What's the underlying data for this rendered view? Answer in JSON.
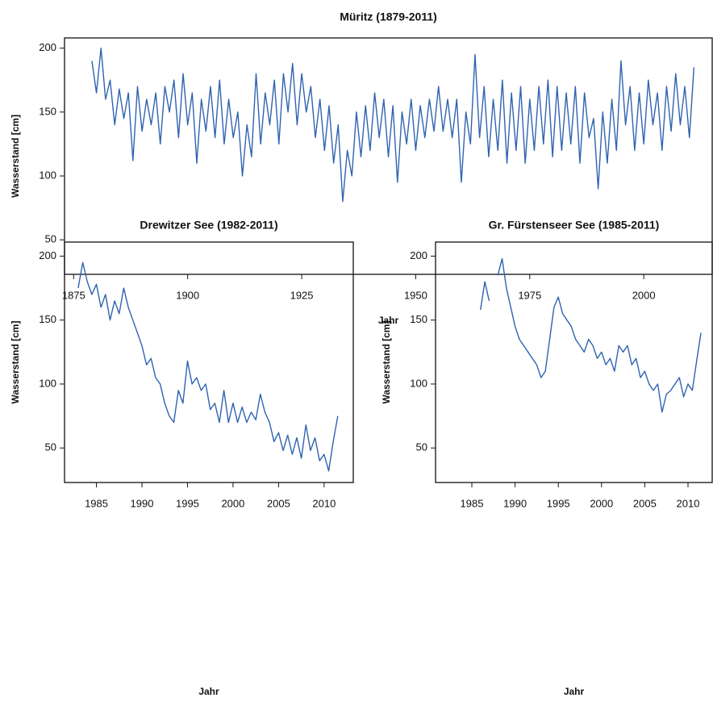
{
  "chart_data": [
    {
      "type": "line",
      "title": "Müritz (1879-2011)",
      "x_label": "Jahr",
      "y_label": "Wasserstand [cm]",
      "x": [
        1879,
        1880,
        1881,
        1882,
        1883,
        1884,
        1885,
        1886,
        1887,
        1888,
        1889,
        1890,
        1891,
        1892,
        1893,
        1894,
        1895,
        1896,
        1897,
        1898,
        1899,
        1900,
        1901,
        1902,
        1903,
        1904,
        1905,
        1906,
        1907,
        1908,
        1909,
        1910,
        1911,
        1912,
        1913,
        1914,
        1915,
        1916,
        1917,
        1918,
        1919,
        1920,
        1921,
        1922,
        1923,
        1924,
        1925,
        1926,
        1927,
        1928,
        1929,
        1930,
        1931,
        1932,
        1933,
        1934,
        1935,
        1936,
        1937,
        1938,
        1939,
        1940,
        1941,
        1942,
        1943,
        1944,
        1945,
        1946,
        1947,
        1948,
        1949,
        1950,
        1951,
        1952,
        1953,
        1954,
        1955,
        1956,
        1957,
        1958,
        1959,
        1960,
        1961,
        1962,
        1963,
        1964,
        1965,
        1966,
        1967,
        1968,
        1969,
        1970,
        1971,
        1972,
        1973,
        1974,
        1975,
        1976,
        1977,
        1978,
        1979,
        1980,
        1981,
        1982,
        1983,
        1984,
        1985,
        1986,
        1987,
        1988,
        1989,
        1990,
        1991,
        1992,
        1993,
        1994,
        1995,
        1996,
        1997,
        1998,
        1999,
        2000,
        2001,
        2002,
        2003,
        2004,
        2005,
        2006,
        2007,
        2008,
        2009,
        2010,
        2011
      ],
      "series": [
        {
          "name": "Müritz",
          "color": "#2f63b0",
          "values": [
            190,
            165,
            200,
            160,
            175,
            140,
            168,
            145,
            165,
            112,
            170,
            135,
            160,
            140,
            165,
            125,
            170,
            150,
            175,
            130,
            180,
            140,
            165,
            110,
            160,
            135,
            170,
            130,
            175,
            125,
            160,
            130,
            150,
            100,
            140,
            115,
            180,
            125,
            165,
            140,
            175,
            125,
            180,
            150,
            188,
            140,
            180,
            150,
            170,
            130,
            160,
            120,
            155,
            110,
            140,
            80,
            120,
            100,
            150,
            115,
            155,
            120,
            165,
            130,
            160,
            115,
            155,
            95,
            150,
            125,
            160,
            120,
            155,
            130,
            160,
            135,
            170,
            135,
            160,
            130,
            160,
            95,
            150,
            125,
            195,
            130,
            170,
            115,
            160,
            120,
            175,
            110,
            165,
            120,
            170,
            110,
            160,
            120,
            170,
            125,
            175,
            115,
            170,
            120,
            165,
            125,
            170,
            110,
            165,
            130,
            145,
            90,
            150,
            110,
            160,
            120,
            190,
            140,
            170,
            120,
            165,
            125,
            175,
            140,
            165,
            120,
            170,
            135,
            180,
            140,
            170,
            130,
            185
          ]
        }
      ],
      "xlim": [
        1873,
        2015
      ],
      "ylim": [
        23,
        208
      ],
      "xticks": [
        1875,
        1900,
        1925,
        1950,
        1975,
        2000
      ],
      "yticks": [
        50,
        100,
        150,
        200
      ]
    },
    {
      "type": "line",
      "title": "Drewitzer See (1982-2011)",
      "x_label": "Jahr",
      "y_label": "Wasserstand [cm]",
      "x": [
        1983,
        1983.5,
        1984,
        1984.5,
        1985,
        1985.5,
        1986,
        1986.5,
        1987,
        1987.5,
        1988,
        1988.5,
        1989,
        1989.5,
        1990,
        1990.5,
        1991,
        1991.5,
        1992,
        1992.5,
        1993,
        1993.5,
        1994,
        1994.5,
        1995,
        1995.5,
        1996,
        1996.5,
        1997,
        1997.5,
        1998,
        1998.5,
        1999,
        1999.5,
        2000,
        2000.5,
        2001,
        2001.5,
        2002,
        2002.5,
        2003,
        2003.5,
        2004,
        2004.5,
        2005,
        2005.5,
        2006,
        2006.5,
        2007,
        2007.5,
        2008,
        2008.5,
        2009,
        2009.5,
        2010,
        2010.5,
        2011,
        2011.5
      ],
      "series": [
        {
          "name": "Drewitzer See",
          "color": "#2f63b0",
          "values": [
            175,
            195,
            180,
            170,
            178,
            160,
            170,
            150,
            165,
            155,
            175,
            160,
            150,
            140,
            130,
            115,
            120,
            105,
            100,
            85,
            75,
            70,
            95,
            85,
            118,
            100,
            105,
            95,
            100,
            80,
            85,
            70,
            95,
            70,
            85,
            70,
            82,
            70,
            78,
            72,
            92,
            78,
            70,
            55,
            62,
            48,
            60,
            45,
            58,
            42,
            68,
            48,
            58,
            40,
            45,
            32,
            55,
            75
          ]
        }
      ],
      "xlim": [
        1981.5,
        2013.2
      ],
      "ylim": [
        23,
        211
      ],
      "xticks": [
        1985,
        1990,
        1995,
        2000,
        2005,
        2010
      ],
      "yticks": [
        50,
        100,
        150,
        200
      ]
    },
    {
      "type": "line",
      "title": "Gr. Fürstenseer See (1985-2011)",
      "x_label": "Jahr",
      "y_label": "Wasserstand [cm]",
      "x": [
        1986,
        1986.5,
        1987,
        1987.5,
        1988,
        1988.5,
        1989,
        1989.5,
        1990,
        1990.5,
        1991,
        1991.5,
        1992,
        1992.5,
        1993,
        1993.5,
        1994,
        1994.5,
        1995,
        1995.5,
        1996,
        1996.5,
        1997,
        1997.5,
        1998,
        1998.5,
        1999,
        1999.5,
        2000,
        2000.5,
        2001,
        2001.5,
        2002,
        2002.5,
        2003,
        2003.5,
        2004,
        2004.5,
        2005,
        2005.5,
        2006,
        2006.5,
        2007,
        2007.5,
        2008,
        2008.5,
        2009,
        2009.5,
        2010,
        2010.5,
        2011,
        2011.5
      ],
      "series": [
        {
          "name": "Gr. Fürstenseer See",
          "color": "#2f63b0",
          "values": [
            158,
            180,
            165,
            null,
            185,
            198,
            175,
            160,
            145,
            135,
            130,
            125,
            120,
            115,
            105,
            110,
            135,
            160,
            168,
            155,
            150,
            145,
            135,
            130,
            125,
            135,
            130,
            120,
            125,
            115,
            120,
            110,
            130,
            125,
            130,
            115,
            120,
            105,
            110,
            100,
            95,
            100,
            78,
            92,
            95,
            100,
            105,
            90,
            100,
            95,
            118,
            140
          ]
        }
      ],
      "xlim": [
        1980.8,
        2012.8
      ],
      "ylim": [
        23,
        211
      ],
      "xticks": [
        1985,
        1990,
        1995,
        2000,
        2005,
        2010
      ],
      "yticks": [
        50,
        100,
        150,
        200
      ]
    }
  ]
}
